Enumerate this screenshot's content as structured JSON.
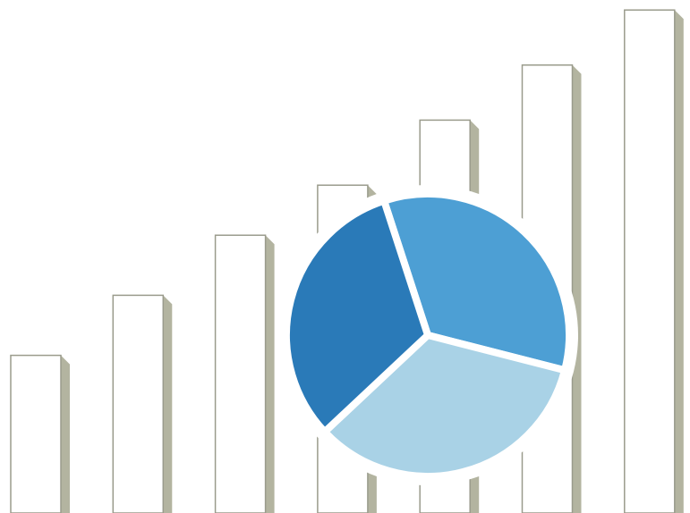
{
  "chart_data": [
    {
      "type": "bar",
      "values": [
        29,
        41,
        53,
        63,
        76,
        87,
        98
      ],
      "color": "#ffffff",
      "ylim": [
        0,
        100
      ]
    },
    {
      "type": "pie",
      "values": [
        34,
        34,
        32
      ],
      "colors": [
        "#4d9fd4",
        "#a9d2e6",
        "#2a7ab8"
      ]
    }
  ]
}
